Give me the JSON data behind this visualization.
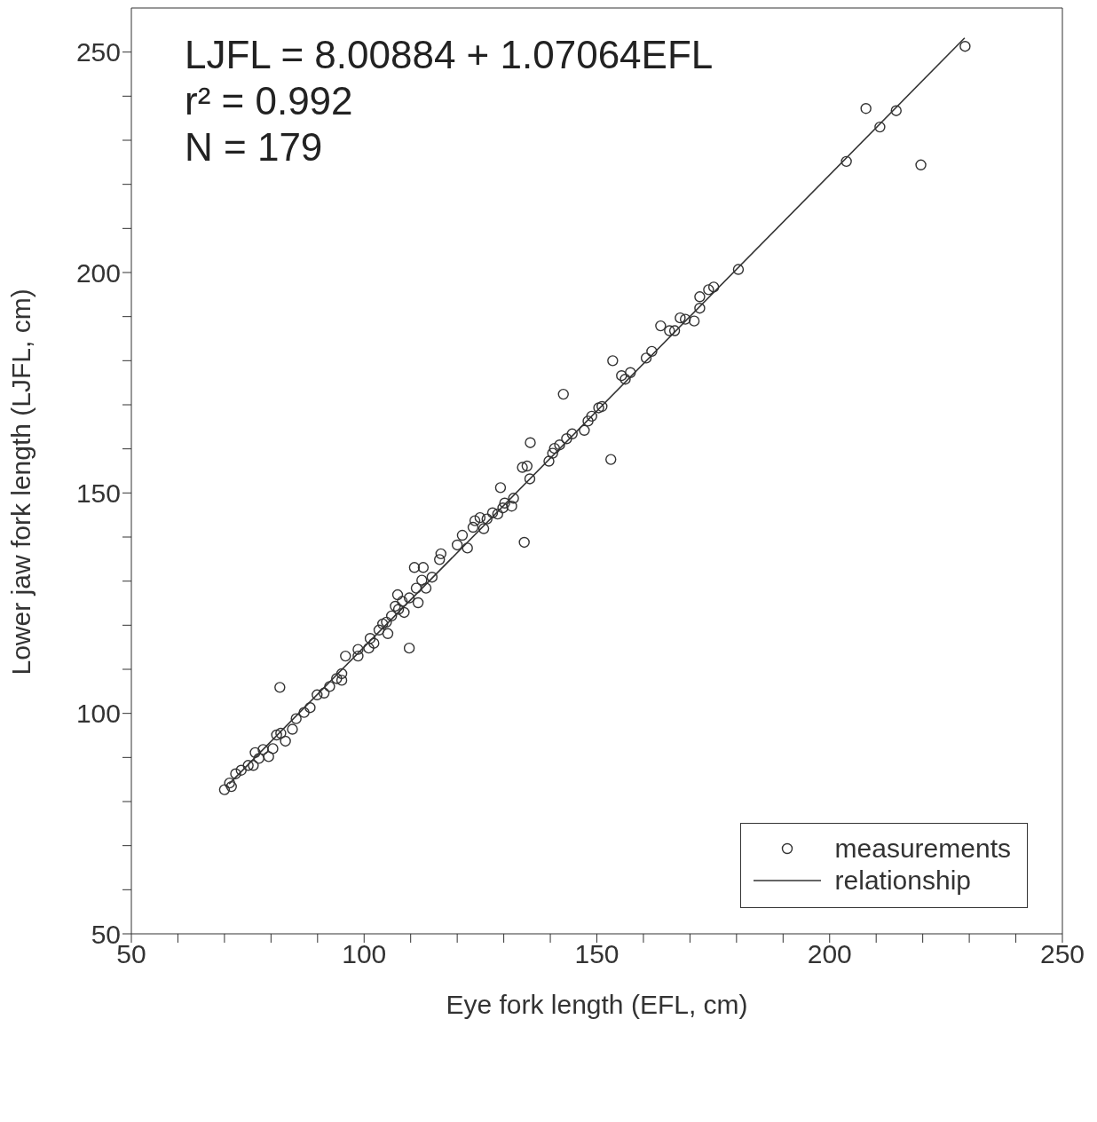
{
  "chart_data": {
    "type": "scatter",
    "xlabel": "Eye fork length (EFL, cm)",
    "ylabel": "Lower jaw fork length (LJFL, cm)",
    "annotations": [
      "LJFL = 8.00884 + 1.07064EFL",
      "r² = 0.992",
      "N = 179"
    ],
    "xlim": [
      50,
      250
    ],
    "ylim": [
      50,
      260
    ],
    "xticks": [
      50,
      {
        "value": 60,
        "label": null
      },
      {
        "value": 70,
        "label": null
      },
      {
        "value": 80,
        "label": null
      },
      {
        "value": 90,
        "label": null
      },
      100,
      {
        "value": 110,
        "label": null
      },
      {
        "value": 120,
        "label": null
      },
      {
        "value": 130,
        "label": null
      },
      {
        "value": 140,
        "label": null
      },
      150,
      {
        "value": 160,
        "label": null
      },
      {
        "value": 170,
        "label": null
      },
      {
        "value": 180,
        "label": null
      },
      {
        "value": 190,
        "label": null
      },
      200,
      {
        "value": 210,
        "label": null
      },
      {
        "value": 220,
        "label": null
      },
      {
        "value": 230,
        "label": null
      },
      {
        "value": 240,
        "label": null
      },
      250
    ],
    "yticks": [
      50,
      {
        "value": 60,
        "label": null
      },
      {
        "value": 70,
        "label": null
      },
      {
        "value": 80,
        "label": null
      },
      {
        "value": 90,
        "label": null
      },
      100,
      {
        "value": 110,
        "label": null
      },
      {
        "value": 120,
        "label": null
      },
      {
        "value": 130,
        "label": null
      },
      {
        "value": 140,
        "label": null
      },
      150,
      {
        "value": 160,
        "label": null
      },
      {
        "value": 170,
        "label": null
      },
      {
        "value": 180,
        "label": null
      },
      {
        "value": 190,
        "label": null
      },
      200,
      {
        "value": 210,
        "label": null
      },
      {
        "value": 220,
        "label": null
      },
      {
        "value": 230,
        "label": null
      },
      {
        "value": 240,
        "label": null
      },
      250
    ],
    "legend": "bottom right",
    "series": [
      {
        "name": "measurements",
        "marker": "circle",
        "color": "#333333",
        "x": [
          70.0,
          71.1,
          71.5,
          72.4,
          73.6,
          75.1,
          76.2,
          76.6,
          77.4,
          78.3,
          79.5,
          80.4,
          81.2,
          82.1,
          81.9,
          83.1,
          84.6,
          85.4,
          87.1,
          88.4,
          89.9,
          91.4,
          92.6,
          94.1,
          95.2,
          95.2,
          96.0,
          98.7,
          98.7,
          101.0,
          101.3,
          102.1,
          103.2,
          104.0,
          104.8,
          105.1,
          105.9,
          106.7,
          107.2,
          107.4,
          108.2,
          108.6,
          109.7,
          109.7,
          110.8,
          111.2,
          111.6,
          112.4,
          112.7,
          113.3,
          114.6,
          116.2,
          116.5,
          120.0,
          121.1,
          122.2,
          123.4,
          123.8,
          124.9,
          125.7,
          126.4,
          127.6,
          128.7,
          129.3,
          129.8,
          130.2,
          131.7,
          132.1,
          134.0,
          134.4,
          135.0,
          135.6,
          135.7,
          139.7,
          140.5,
          140.9,
          142.0,
          142.8,
          143.5,
          144.7,
          147.3,
          148.1,
          148.9,
          150.4,
          151.1,
          153.0,
          153.4,
          155.3,
          156.1,
          157.2,
          160.6,
          161.8,
          163.7,
          165.6,
          166.7,
          167.9,
          169.0,
          170.9,
          172.1,
          172.1,
          174.0,
          175.1,
          180.4,
          203.6,
          207.8,
          210.8,
          214.3,
          219.6,
          229.1
        ],
        "values": [
          82.7,
          84.2,
          83.4,
          86.3,
          87.1,
          88.2,
          88.2,
          91.1,
          89.8,
          91.8,
          90.2,
          92.0,
          95.1,
          95.5,
          105.9,
          93.7,
          96.4,
          98.8,
          100.2,
          101.3,
          104.2,
          104.6,
          106.1,
          107.9,
          107.5,
          109.0,
          113.0,
          113.0,
          114.5,
          114.8,
          117.0,
          115.9,
          118.9,
          120.3,
          120.7,
          118.1,
          122.1,
          124.3,
          126.9,
          123.6,
          125.4,
          122.9,
          126.2,
          114.8,
          133.1,
          128.4,
          125.1,
          130.2,
          133.1,
          128.4,
          130.9,
          134.9,
          136.2,
          138.2,
          140.4,
          137.5,
          142.2,
          143.7,
          144.4,
          141.9,
          144.1,
          145.5,
          145.2,
          151.2,
          146.6,
          147.7,
          147.0,
          148.8,
          155.8,
          138.8,
          156.1,
          153.2,
          161.4,
          157.2,
          159.0,
          160.1,
          160.9,
          172.4,
          162.3,
          163.4,
          164.2,
          166.3,
          167.4,
          169.3,
          169.6,
          157.6,
          180.0,
          176.6,
          175.8,
          177.3,
          180.6,
          182.1,
          187.9,
          186.8,
          186.8,
          189.7,
          189.4,
          189.0,
          191.9,
          194.5,
          196.1,
          196.7,
          200.7,
          225.2,
          237.2,
          233.0,
          236.7,
          224.4,
          251.3
        ]
      },
      {
        "name": "relationship",
        "type": "line",
        "color": "#333333",
        "x": [
          71,
          229
        ],
        "values": [
          84.0,
          253.2
        ]
      }
    ]
  }
}
